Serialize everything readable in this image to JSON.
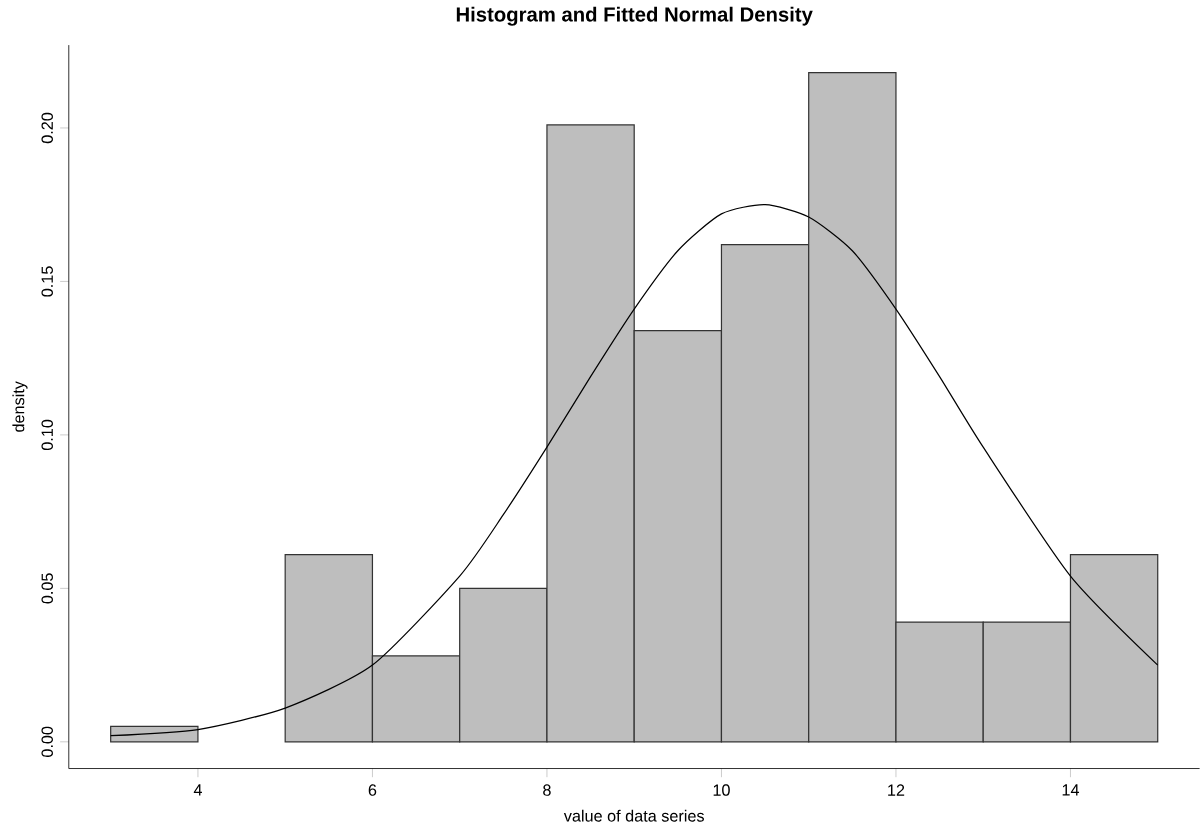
{
  "chart_data": {
    "type": "histogram",
    "title": "Histogram and Fitted Normal Density",
    "xlabel": "value of data series",
    "ylabel": "density",
    "bins": [
      3,
      4,
      5,
      6,
      7,
      8,
      9,
      10,
      11,
      12,
      13,
      14,
      15
    ],
    "values": [
      0.005,
      0,
      0.061,
      0.028,
      0.05,
      0.201,
      0.134,
      0.162,
      0.218,
      0.039,
      0.039,
      0.061
    ],
    "color": "#bebebe",
    "series": [
      {
        "type": "line",
        "color": "#000000",
        "x": [
          3,
          4,
          5,
          6,
          7,
          7.5,
          8,
          8.5,
          9,
          9.5,
          10,
          10.5,
          11,
          11.5,
          12,
          12.5,
          13,
          14,
          15
        ],
        "values": [
          0.002,
          0.004,
          0.011,
          0.025,
          0.054,
          0.074,
          0.096,
          0.119,
          0.141,
          0.16,
          0.172,
          0.175,
          0.171,
          0.16,
          0.141,
          0.119,
          0.096,
          0.054,
          0.025
        ]
      }
    ],
    "xlim": [
      2.52,
      15.48
    ],
    "ylim": [
      -0.0087,
      0.227
    ],
    "xticks": [
      4,
      6,
      8,
      10,
      12,
      14
    ],
    "yticks": [
      {
        "value": 0,
        "label": "0.00"
      },
      {
        "value": 0.05,
        "label": "0.05"
      },
      {
        "value": 0.1,
        "label": "0.10"
      },
      {
        "value": 0.15,
        "label": "0.15"
      },
      {
        "value": 0.2,
        "label": "0.20"
      }
    ]
  }
}
